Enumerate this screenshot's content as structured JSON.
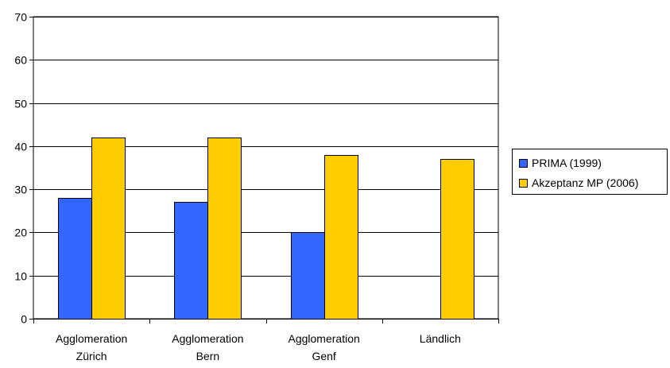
{
  "chart_data": {
    "type": "bar",
    "categories": [
      [
        "Agglomeration",
        "Zürich"
      ],
      [
        "Agglomeration",
        "Bern"
      ],
      [
        "Agglomeration",
        "Genf"
      ],
      [
        "Ländlich"
      ]
    ],
    "series": [
      {
        "name": "PRIMA (1999)",
        "values": [
          28,
          27,
          20,
          null
        ],
        "color": "#3366ff"
      },
      {
        "name": "Akzeptanz MP (2006)",
        "values": [
          42,
          42,
          38,
          37
        ],
        "color": "#ffcc00"
      }
    ],
    "yticks": [
      "0",
      "10",
      "20",
      "30",
      "40",
      "50",
      "60",
      "70"
    ],
    "ylim": [
      0,
      70
    ],
    "grid": true,
    "legend_position": "right"
  }
}
